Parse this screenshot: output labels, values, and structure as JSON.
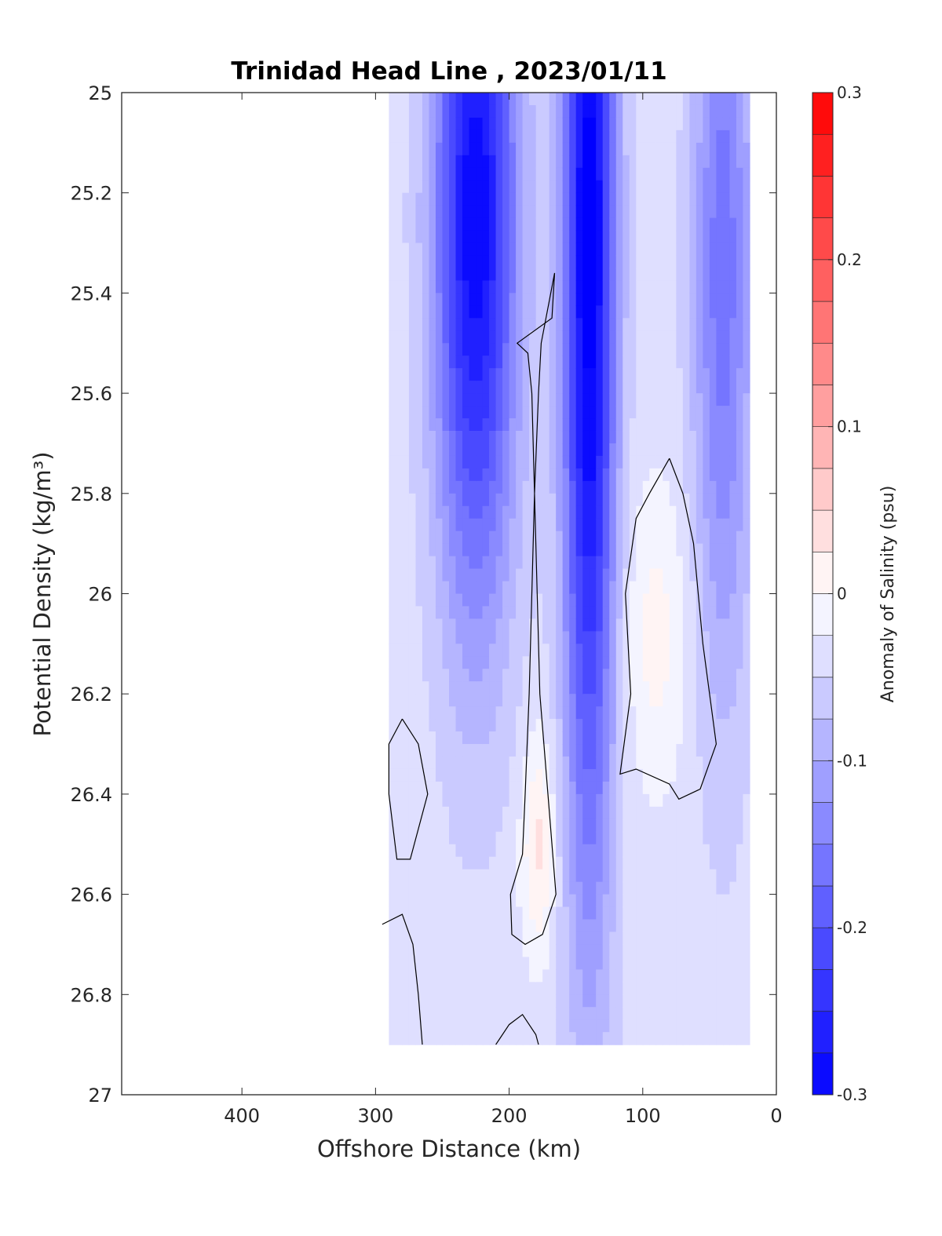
{
  "chart_data": {
    "type": "heatmap",
    "title": "Trinidad Head Line , 2023/01/11",
    "xlabel": "Offshore Distance (km)",
    "ylabel": "Potential Density (kg/m³)",
    "xlim": [
      490,
      0
    ],
    "ylim": [
      25,
      27
    ],
    "x_reversed": true,
    "y_reversed": true,
    "xticks": [
      "400",
      "300",
      "200",
      "100",
      "0"
    ],
    "xtick_values": [
      400,
      300,
      200,
      100,
      0
    ],
    "yticks": [
      "25",
      "25.2",
      "25.4",
      "25.6",
      "25.8",
      "26",
      "26.2",
      "26.4",
      "26.6",
      "26.8",
      "27"
    ],
    "ytick_values": [
      25,
      25.2,
      25.4,
      25.6,
      25.8,
      26,
      26.2,
      26.4,
      26.6,
      26.8,
      27
    ],
    "colorbar": {
      "label": "Anomaly of Salinity (psu)",
      "range": [
        -0.3,
        0.3
      ],
      "step": 0.025,
      "ticks": [
        "-0.3",
        "-0.2",
        "-0.1",
        "0",
        "0.1",
        "0.2",
        "0.3"
      ],
      "tick_values": [
        -0.3,
        -0.2,
        -0.1,
        0,
        0.1,
        0.2,
        0.3
      ],
      "low_color": "#0000ff",
      "mid_color": "#ffffff",
      "high_color": "#ff0000"
    },
    "data_extent": {
      "x_range": [
        290,
        20
      ],
      "density_range": [
        25,
        26.9
      ]
    },
    "features": [
      {
        "kind": "core",
        "x": 225,
        "density": 25.25,
        "value": -0.26,
        "sx": 22,
        "sy": 0.55
      },
      {
        "kind": "core",
        "x": 140,
        "density": 25.3,
        "value": -0.28,
        "sx": 14,
        "sy": 0.9
      },
      {
        "kind": "core",
        "x": 40,
        "density": 25.35,
        "value": -0.13,
        "sx": 16,
        "sy": 0.6
      },
      {
        "kind": "core",
        "x": 178,
        "density": 26.5,
        "value": 0.07,
        "sx": 9,
        "sy": 0.15
      },
      {
        "kind": "core",
        "x": 90,
        "density": 26.08,
        "value": 0.045,
        "sx": 18,
        "sy": 0.2
      }
    ],
    "zero_contours": [
      [
        [
          166,
          25.36
        ],
        [
          176,
          25.5
        ],
        [
          178,
          25.6
        ],
        [
          181,
          25.8
        ],
        [
          183,
          26.0
        ],
        [
          185,
          26.2
        ],
        [
          188,
          26.4
        ],
        [
          190,
          26.52
        ],
        [
          199,
          26.6
        ],
        [
          198,
          26.68
        ],
        [
          188,
          26.7
        ],
        [
          175,
          26.68
        ],
        [
          165,
          26.6
        ],
        [
          171,
          26.4
        ],
        [
          177,
          26.2
        ],
        [
          179,
          26.0
        ],
        [
          181,
          25.8
        ],
        [
          183,
          25.6
        ],
        [
          186,
          25.52
        ],
        [
          194,
          25.5
        ],
        [
          168,
          25.45
        ],
        [
          166,
          25.36
        ]
      ],
      [
        [
          80,
          25.73
        ],
        [
          95,
          25.8
        ],
        [
          105,
          25.85
        ],
        [
          113,
          26.0
        ],
        [
          109,
          26.2
        ],
        [
          117,
          26.36
        ],
        [
          105,
          26.35
        ],
        [
          80,
          26.38
        ],
        [
          73,
          26.41
        ],
        [
          57,
          26.39
        ],
        [
          45,
          26.3
        ],
        [
          55,
          26.1
        ],
        [
          62,
          25.9
        ],
        [
          70,
          25.8
        ],
        [
          80,
          25.73
        ]
      ],
      [
        [
          280,
          26.25
        ],
        [
          290,
          26.3
        ],
        [
          290,
          26.4
        ],
        [
          284,
          26.53
        ],
        [
          274,
          26.53
        ],
        [
          261,
          26.4
        ],
        [
          268,
          26.3
        ],
        [
          280,
          26.25
        ]
      ],
      [
        [
          295,
          26.66
        ],
        [
          280,
          26.64
        ],
        [
          272,
          26.7
        ],
        [
          268,
          26.8
        ],
        [
          265,
          26.9
        ]
      ],
      [
        [
          210,
          26.9
        ],
        [
          200,
          26.86
        ],
        [
          190,
          26.84
        ],
        [
          180,
          26.88
        ],
        [
          178,
          26.9
        ]
      ]
    ]
  }
}
